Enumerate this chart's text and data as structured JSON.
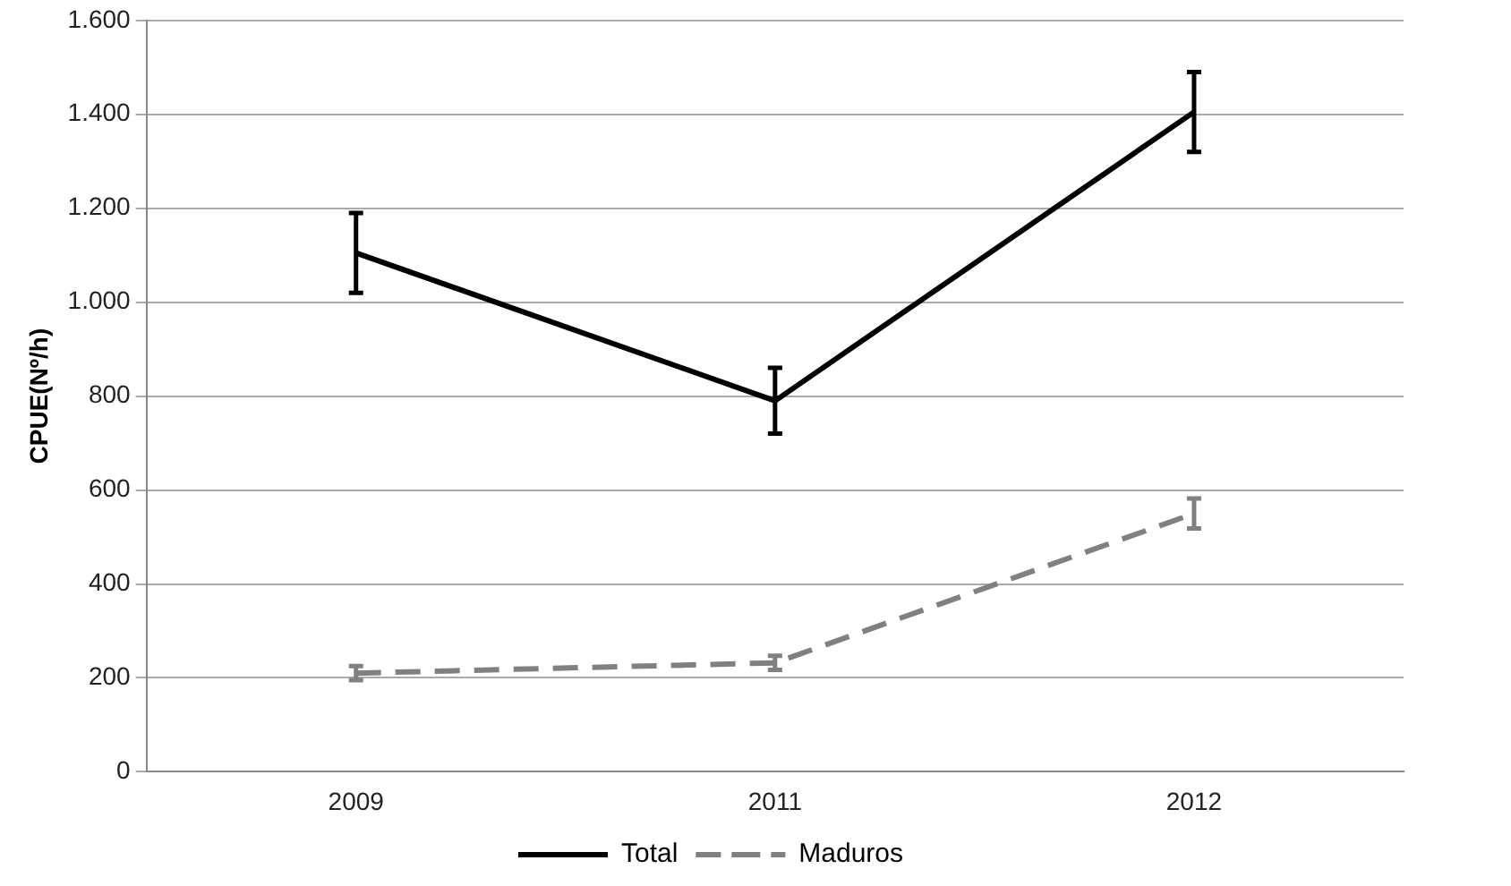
{
  "chart_data": {
    "type": "line",
    "ylabel": "CPUE(Nº/h)",
    "categories": [
      "2009",
      "2011",
      "2012"
    ],
    "series": [
      {
        "name": "Total",
        "color": "#000000",
        "values": [
          1105,
          790,
          1405
        ],
        "errors": [
          85,
          70,
          85
        ],
        "line_style": "solid"
      },
      {
        "name": "Maduros",
        "color": "#808080",
        "values": [
          210,
          232,
          550
        ],
        "errors": [
          15,
          15,
          32
        ],
        "line_style": "dashed"
      }
    ],
    "ylim": [
      0,
      1600
    ],
    "yticks": [
      {
        "value": 0,
        "label": "0"
      },
      {
        "value": 200,
        "label": "200"
      },
      {
        "value": 400,
        "label": "400"
      },
      {
        "value": 600,
        "label": "600"
      },
      {
        "value": 800,
        "label": "800"
      },
      {
        "value": 1000,
        "label": "1.000"
      },
      {
        "value": 1200,
        "label": "1.200"
      },
      {
        "value": 1400,
        "label": "1.400"
      },
      {
        "value": 1600,
        "label": "1.600"
      }
    ],
    "grid": "y",
    "legend": "bottom"
  }
}
